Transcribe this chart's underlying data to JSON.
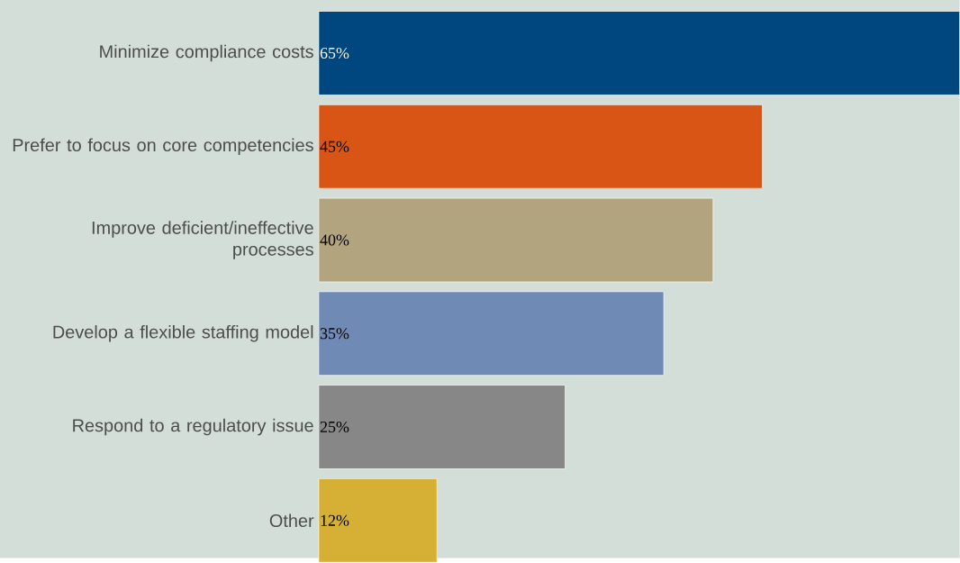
{
  "chart_data": {
    "type": "bar",
    "orientation": "horizontal",
    "categories": [
      "Minimize compliance costs",
      "Prefer to focus on core competencies",
      "Improve deficient/ineffective processes",
      "Develop a flexible staffing model",
      "Respond to a regulatory issue",
      "Other"
    ],
    "values": [
      65,
      45,
      40,
      35,
      25,
      12
    ],
    "colors": [
      "#00467f",
      "#d95516",
      "#b2a47e",
      "#6f8bb5",
      "#878787",
      "#d5b035"
    ],
    "value_labels": [
      "65%",
      "45%",
      "40%",
      "35%",
      "25%",
      "12%"
    ]
  }
}
